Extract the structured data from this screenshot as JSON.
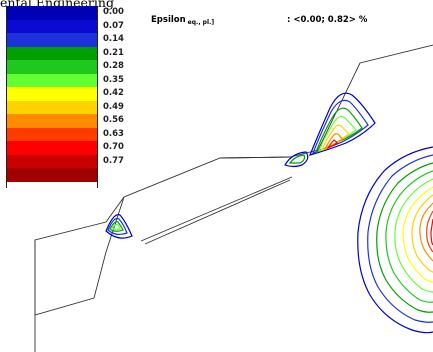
{
  "header": {
    "text": "ental Engineering"
  },
  "plot": {
    "variable": "Epsilon",
    "variable_subscript": "eq., pl.]",
    "range_text": ": <0.00; 0.82> %"
  },
  "legend": {
    "items": [
      {
        "label": "0.00",
        "color": "#0000b4"
      },
      {
        "label": "0.07",
        "color": "#0a0ad2"
      },
      {
        "label": "0.14",
        "color": "#1e32dc"
      },
      {
        "label": "0.21",
        "color": "#00a000"
      },
      {
        "label": "0.28",
        "color": "#1ec81e"
      },
      {
        "label": "0.35",
        "color": "#64ff32"
      },
      {
        "label": "0.42",
        "color": "#ffff00"
      },
      {
        "label": "0.49",
        "color": "#ffd200"
      },
      {
        "label": "0.56",
        "color": "#ff8c00"
      },
      {
        "label": "0.63",
        "color": "#ff3c00"
      },
      {
        "label": "0.70",
        "color": "#ff0000"
      },
      {
        "label": "0.77",
        "color": "#c80000"
      },
      {
        "label": "",
        "color": "#a00000"
      }
    ]
  }
}
